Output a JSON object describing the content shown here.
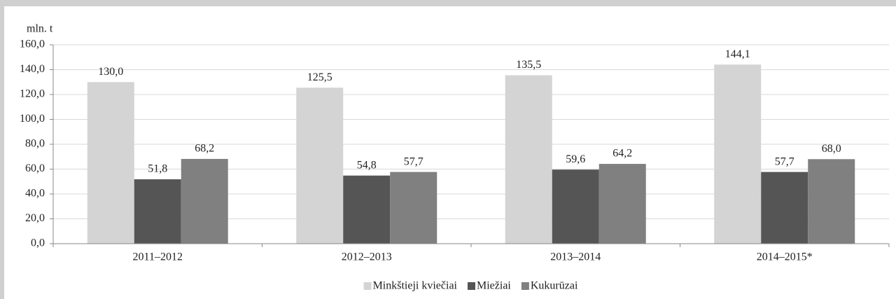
{
  "chart_data": {
    "type": "bar",
    "y_axis_label": "mln. t",
    "categories": [
      "2011–2012",
      "2012–2013",
      "2013–2014",
      "2014–2015*"
    ],
    "series": [
      {
        "name": "Minkštieji kviečiai",
        "color": "#d4d4d4",
        "values": [
          130.0,
          125.5,
          135.5,
          144.1
        ],
        "value_labels": [
          "130,0",
          "125,5",
          "135,5",
          "144,1"
        ]
      },
      {
        "name": "Miežiai",
        "color": "#555555",
        "values": [
          51.8,
          54.8,
          59.6,
          57.7
        ],
        "value_labels": [
          "51,8",
          "54,8",
          "59,6",
          "57,7"
        ]
      },
      {
        "name": "Kukurūzai",
        "color": "#808080",
        "values": [
          68.2,
          57.7,
          64.2,
          68.0
        ],
        "value_labels": [
          "68,2",
          "57,7",
          "64,2",
          "68,0"
        ]
      }
    ],
    "ylim": [
      0,
      160
    ],
    "yticks": [
      {
        "value": 0,
        "label": "0,0"
      },
      {
        "value": 20,
        "label": "20,0"
      },
      {
        "value": 40,
        "label": "40,0"
      },
      {
        "value": 60,
        "label": "60,0"
      },
      {
        "value": 80,
        "label": "80,0"
      },
      {
        "value": 100,
        "label": "100,0"
      },
      {
        "value": 120,
        "label": "120,0"
      },
      {
        "value": 140,
        "label": "140,0"
      },
      {
        "value": 160,
        "label": "160,0"
      }
    ],
    "grid": true,
    "legend": "bottom"
  }
}
